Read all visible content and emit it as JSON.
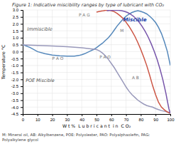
{
  "chart_data": {
    "type": "line",
    "title": "Figure 1: Indicative miscibility ranges by type of lubricant with CO₂",
    "xlabel": "W t %  L u b r i c a n t  i n  C O₂",
    "ylabel": "Temperature °C",
    "footnote": "M: Mineral oil, AB: Alkylbenzene, POE: Polyolester, PAO: Polyalphaolefin, PAG:\nPolyalkylene glycol",
    "xlim": [
      0,
      100
    ],
    "ylim": [
      -4.5,
      3.0
    ],
    "xticks": [
      0,
      10,
      20,
      30,
      40,
      50,
      60,
      70,
      80,
      90,
      100
    ],
    "yticks": [
      {
        "value": 3.0,
        "label": "3.0"
      },
      2.5,
      {
        "value": 2.0,
        "label": "2.0"
      },
      1.5,
      {
        "value": 1.0,
        "label": "1.0"
      },
      0.5,
      {
        "value": 0.0,
        "label": "0.0"
      },
      -0.5,
      {
        "value": -1.0,
        "label": "-1.0"
      },
      -1.5,
      {
        "value": -2.0,
        "label": "-2.0"
      },
      -2.5,
      {
        "value": -3.0,
        "label": "-3.0"
      },
      -3.5,
      {
        "value": -4.0,
        "label": "-4.0"
      },
      -4.5
    ],
    "grid": true,
    "series": [
      {
        "color": "#5588bb",
        "x": [
          0,
          5,
          10,
          15,
          20,
          25,
          30,
          33,
          35,
          38,
          40,
          42,
          44,
          46,
          48,
          50,
          52,
          54,
          56,
          58,
          60,
          62,
          64,
          66,
          68,
          70,
          72,
          74,
          76,
          78,
          80,
          82,
          84,
          86,
          88,
          90,
          92,
          94,
          96,
          98,
          100
        ],
        "values": [
          0.5,
          0.3,
          0.0,
          -0.15,
          -0.25,
          -0.3,
          -0.32,
          -0.33,
          -0.32,
          -0.28,
          -0.22,
          -0.15,
          -0.05,
          0.05,
          0.15,
          0.28,
          0.45,
          0.6,
          0.8,
          1.0,
          1.25,
          1.55,
          1.85,
          2.1,
          2.35,
          2.55,
          2.7,
          2.82,
          2.9,
          2.95,
          2.9,
          2.82,
          2.72,
          2.55,
          2.35,
          2.1,
          1.75,
          1.3,
          0.7,
          0.0,
          -1.0
        ]
      },
      {
        "color": "#9999bb",
        "x": [
          0,
          10,
          20,
          30,
          40,
          50,
          52,
          54,
          56,
          58,
          60,
          62,
          64,
          66,
          68,
          70,
          72,
          74,
          76,
          78,
          80,
          82,
          84,
          86,
          88,
          90,
          92,
          94,
          96,
          98,
          100
        ],
        "values": [
          0.48,
          0.45,
          0.4,
          0.35,
          0.28,
          0.15,
          0.05,
          -0.1,
          -0.3,
          -0.55,
          -0.85,
          -1.15,
          -1.5,
          -1.85,
          -2.2,
          -2.55,
          -2.85,
          -3.1,
          -3.3,
          -3.5,
          -3.65,
          -3.78,
          -3.88,
          -3.95,
          -4.0,
          -4.1,
          -4.18,
          -4.25,
          -4.3,
          -4.35,
          -4.4
        ]
      },
      {
        "color": "#cc5544",
        "x": [
          50,
          52,
          54,
          55,
          56,
          57,
          58,
          59,
          60,
          62,
          64,
          66,
          68,
          70,
          72,
          74,
          76,
          78,
          80,
          82,
          84,
          86,
          88,
          90,
          92,
          94,
          96,
          98,
          100
        ],
        "values": [
          2.85,
          2.9,
          2.93,
          2.95,
          2.97,
          2.98,
          2.98,
          2.97,
          2.95,
          2.88,
          2.75,
          2.58,
          2.38,
          2.12,
          1.82,
          1.48,
          1.1,
          0.65,
          0.15,
          -0.4,
          -1.0,
          -1.7,
          -2.45,
          -3.1,
          -3.65,
          -4.0,
          -4.2,
          -4.35,
          -4.45
        ]
      },
      {
        "color": "#7755aa",
        "x": [
          57,
          59,
          61,
          63,
          65,
          67,
          69,
          71,
          73,
          75,
          77,
          79,
          81,
          83,
          85,
          87,
          89,
          91,
          93,
          95,
          97,
          99,
          100
        ],
        "values": [
          2.95,
          2.97,
          2.98,
          2.98,
          2.97,
          2.95,
          2.9,
          2.82,
          2.7,
          2.55,
          2.35,
          2.1,
          1.8,
          1.45,
          1.05,
          0.58,
          0.05,
          -0.55,
          -1.25,
          -2.05,
          -3.0,
          -4.1,
          -4.45
        ]
      }
    ],
    "annotations": [
      {
        "x": 3,
        "y": 1.5,
        "text": "Immiscible",
        "color": "#555555"
      },
      {
        "x": 68,
        "y": 2.2,
        "text": "Miscible",
        "color": "#2244aa"
      },
      {
        "x": 2,
        "y": -2.2,
        "text": "POE Miscible",
        "color": "#555555"
      },
      {
        "x": 38,
        "y": 2.55,
        "text": "P A G",
        "color": "#777777"
      },
      {
        "x": 20,
        "y": -0.6,
        "text": "P A O",
        "color": "#777777"
      },
      {
        "x": 52,
        "y": -0.5,
        "text": "P A O",
        "color": "#777777"
      },
      {
        "x": 74,
        "y": -2.0,
        "text": "A B",
        "color": "#777777"
      },
      {
        "x": 66,
        "y": 1.4,
        "text": "M",
        "color": "#777777"
      }
    ]
  }
}
